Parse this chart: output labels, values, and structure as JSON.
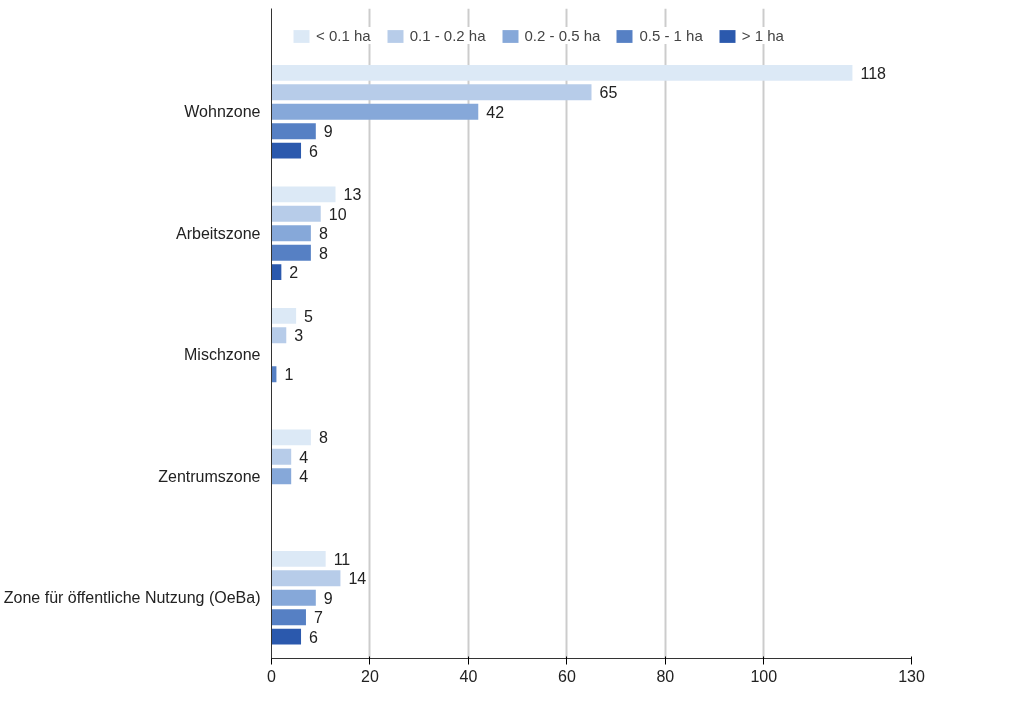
{
  "chart_data": {
    "type": "bar",
    "orientation": "horizontal",
    "categories": [
      "Wohnzone",
      "Arbeitszone",
      "Mischzone",
      "Zentrumszone",
      "Zone für öffentliche Nutzung (OeBa)"
    ],
    "series": [
      {
        "name": "< 0.1 ha",
        "color": "#dce9f6",
        "values": [
          118,
          13,
          5,
          8,
          11
        ]
      },
      {
        "name": "0.1 - 0.2 ha",
        "color": "#b7cce9",
        "values": [
          65,
          10,
          3,
          4,
          14
        ]
      },
      {
        "name": "0.2 - 0.5 ha",
        "color": "#86a8d9",
        "values": [
          42,
          8,
          null,
          4,
          9
        ]
      },
      {
        "name": "0.5 - 1 ha",
        "color": "#5680c4",
        "values": [
          9,
          8,
          1,
          null,
          7
        ]
      },
      {
        "name": "> 1 ha",
        "color": "#2b59ad",
        "values": [
          6,
          2,
          null,
          null,
          6
        ]
      }
    ],
    "xlim": [
      0,
      130
    ],
    "xticks": [
      0,
      20,
      40,
      60,
      80,
      100,
      130
    ],
    "grid": "x",
    "legend": "top",
    "data_labels": true
  }
}
